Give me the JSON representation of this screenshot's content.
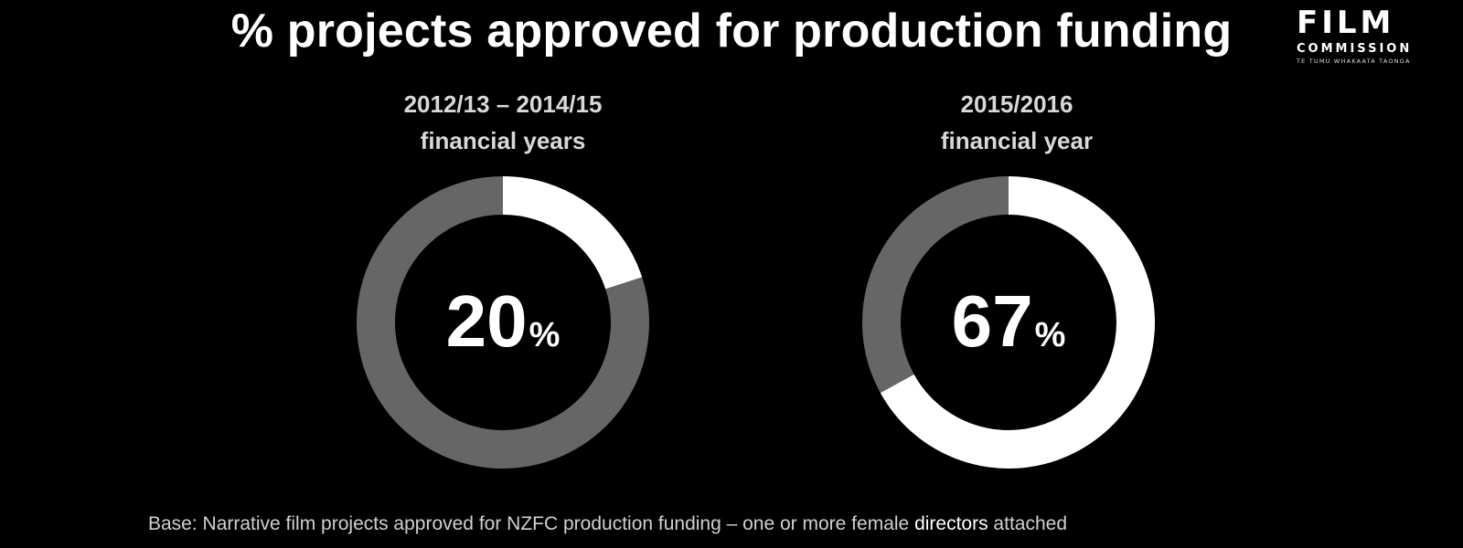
{
  "title": "% projects approved for production funding",
  "logo": {
    "line1": "FILM",
    "line2": "COMMISSION",
    "tagline": "TE TUMU WHAKAATA TAONGA"
  },
  "colors": {
    "background": "#000000",
    "highlight": "#ffffff",
    "remainder": "#666666",
    "period_text": "#d9d9d9",
    "footnote_text": "#d0d0d0"
  },
  "chart_data": [
    {
      "type": "pie",
      "title": "2012/13 – 2014/15 financial years",
      "title_lines": [
        "2012/13 – 2014/15",
        "financial years"
      ],
      "value": 20,
      "unit": "%",
      "slices": [
        {
          "label": "",
          "value": 20,
          "color": "#ffffff"
        },
        {
          "label": "",
          "value": 80,
          "color": "#666666"
        }
      ]
    },
    {
      "type": "pie",
      "title": "2015/2016 financial year",
      "title_lines": [
        "2015/2016",
        "financial year"
      ],
      "value": 67,
      "unit": "%",
      "slices": [
        {
          "label": "",
          "value": 67,
          "color": "#ffffff"
        },
        {
          "label": "",
          "value": 33,
          "color": "#666666"
        }
      ]
    }
  ],
  "footnote": {
    "prefix": "Base: Narrative film projects approved for NZFC production funding – one or more female ",
    "highlight": "directors",
    "suffix": " attached"
  }
}
